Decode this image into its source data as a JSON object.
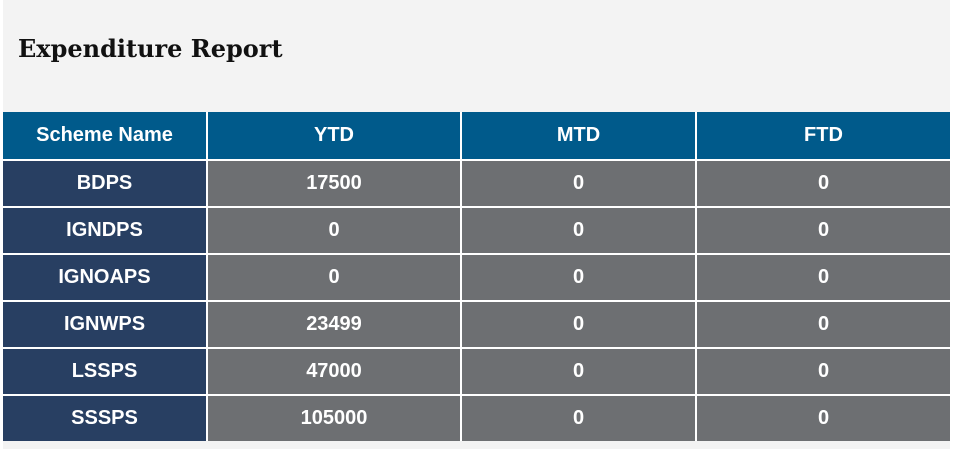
{
  "report": {
    "title": "Expenditure Report",
    "columns": [
      "Scheme Name",
      "YTD",
      "MTD",
      "FTD"
    ],
    "rows": [
      {
        "scheme": "BDPS",
        "ytd": "17500",
        "mtd": "0",
        "ftd": "0"
      },
      {
        "scheme": "IGNDPS",
        "ytd": "0",
        "mtd": "0",
        "ftd": "0"
      },
      {
        "scheme": "IGNOAPS",
        "ytd": "0",
        "mtd": "0",
        "ftd": "0"
      },
      {
        "scheme": "IGNWPS",
        "ytd": "23499",
        "mtd": "0",
        "ftd": "0"
      },
      {
        "scheme": "LSSPS",
        "ytd": "47000",
        "mtd": "0",
        "ftd": "0"
      },
      {
        "scheme": "SSSPS",
        "ytd": "105000",
        "mtd": "0",
        "ftd": "0"
      }
    ]
  },
  "colors": {
    "panel_background": "#f3f3f3",
    "header_background": "#005a8b",
    "scheme_cell_background": "#283f62",
    "value_cell_background": "#6d6f72",
    "text": "#ffffff"
  }
}
